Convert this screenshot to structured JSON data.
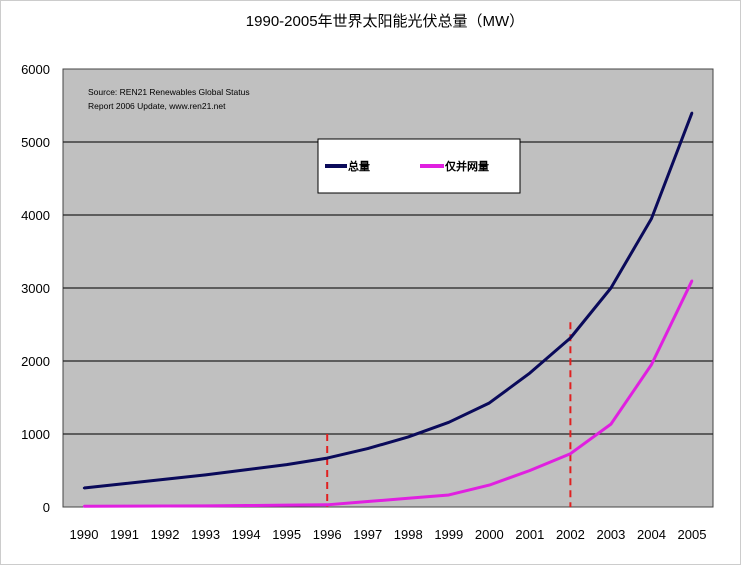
{
  "chart_data": {
    "type": "line",
    "title": "1990-2005年世界太阳能光伏总量（MW）",
    "xlabel": "",
    "ylabel": "",
    "annotation": [
      "Source: REN21 Renewables Global Status",
      "Report 2006 Update, www.ren21.net"
    ],
    "categories": [
      "1990",
      "1991",
      "1992",
      "1993",
      "1994",
      "1995",
      "1996",
      "1997",
      "1998",
      "1999",
      "2000",
      "2001",
      "2002",
      "2003",
      "2004",
      "2005"
    ],
    "ylim": [
      0,
      6000
    ],
    "yticks": [
      "0",
      "1000",
      "2000",
      "3000",
      "4000",
      "5000",
      "6000"
    ],
    "grid": true,
    "legend": "top-center",
    "series": [
      {
        "name": "总量",
        "color": "#0a0a5a",
        "values": [
          260,
          320,
          380,
          440,
          510,
          580,
          670,
          800,
          960,
          1160,
          1425,
          1835,
          2315,
          3000,
          3950,
          5400
        ]
      },
      {
        "name": "仅并网量",
        "color": "#e020e0",
        "values": [
          10,
          12,
          14,
          16,
          20,
          25,
          30,
          75,
          120,
          165,
          300,
          500,
          730,
          1135,
          1950,
          3100
        ]
      }
    ],
    "reference_lines": [
      {
        "x": "1996",
        "top": 1000,
        "color": "#e02020",
        "style": "dashed"
      },
      {
        "x": "2002",
        "top": 2530,
        "color": "#e02020",
        "style": "dashed"
      }
    ],
    "plot_background": "#c0c0c0"
  }
}
